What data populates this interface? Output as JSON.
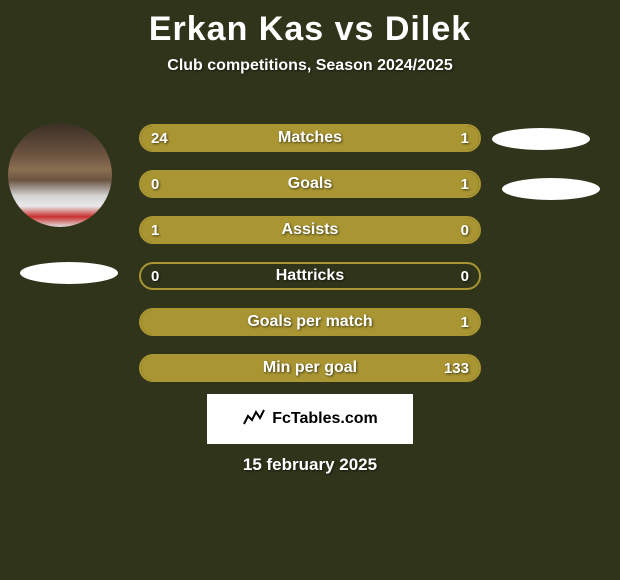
{
  "header": {
    "title": "Erkan Kas vs Dilek",
    "subtitle": "Club competitions, Season 2024/2025"
  },
  "stats": [
    {
      "label": "Matches",
      "left_value": "24",
      "right_value": "1",
      "left_fill_pct": 80,
      "right_fill_pct": 20
    },
    {
      "label": "Goals",
      "left_value": "0",
      "right_value": "1",
      "left_fill_pct": 20,
      "right_fill_pct": 100
    },
    {
      "label": "Assists",
      "left_value": "1",
      "right_value": "0",
      "left_fill_pct": 100,
      "right_fill_pct": 0
    },
    {
      "label": "Hattricks",
      "left_value": "0",
      "right_value": "0",
      "left_fill_pct": 0,
      "right_fill_pct": 0
    },
    {
      "label": "Goals per match",
      "left_value": "",
      "right_value": "1",
      "left_fill_pct": 0,
      "right_fill_pct": 100
    },
    {
      "label": "Min per goal",
      "left_value": "",
      "right_value": "133",
      "left_fill_pct": 0,
      "right_fill_pct": 100
    }
  ],
  "watermark": {
    "text": "FcTables.com"
  },
  "date": "15 february 2025",
  "colors": {
    "background": "#2f341b",
    "bar_color": "#a99532",
    "text": "#ffffff"
  }
}
